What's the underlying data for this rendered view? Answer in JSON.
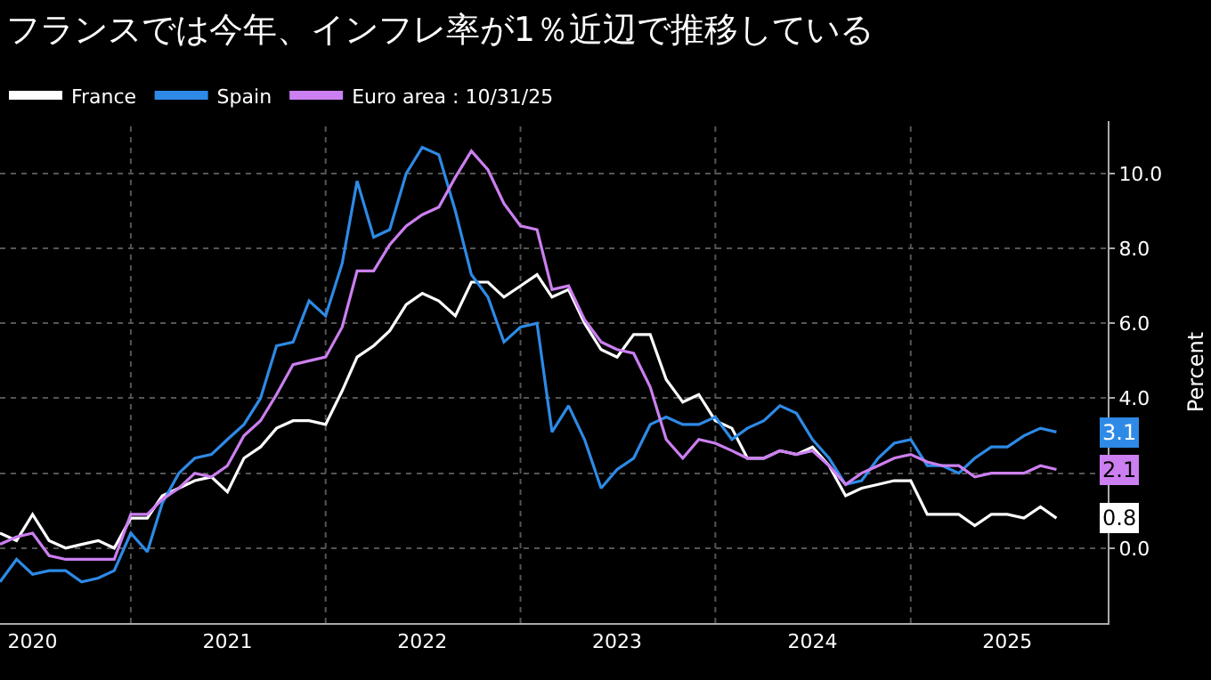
{
  "chart_data": {
    "type": "line",
    "title": "フランスでは今年、インフレ率が1％近辺で推移している",
    "ylabel": "Percent",
    "x": [
      "2020-05",
      "2020-06",
      "2020-07",
      "2020-08",
      "2020-09",
      "2020-10",
      "2020-11",
      "2020-12",
      "2021-01",
      "2021-02",
      "2021-03",
      "2021-04",
      "2021-05",
      "2021-06",
      "2021-07",
      "2021-08",
      "2021-09",
      "2021-10",
      "2021-11",
      "2021-12",
      "2022-01",
      "2022-02",
      "2022-03",
      "2022-04",
      "2022-05",
      "2022-06",
      "2022-07",
      "2022-08",
      "2022-09",
      "2022-10",
      "2022-11",
      "2022-12",
      "2023-01",
      "2023-02",
      "2023-03",
      "2023-04",
      "2023-05",
      "2023-06",
      "2023-07",
      "2023-08",
      "2023-09",
      "2023-10",
      "2023-11",
      "2023-12",
      "2024-01",
      "2024-02",
      "2024-03",
      "2024-04",
      "2024-05",
      "2024-06",
      "2024-07",
      "2024-08",
      "2024-09",
      "2024-10",
      "2024-11",
      "2024-12",
      "2025-01",
      "2025-02",
      "2025-03",
      "2025-04",
      "2025-05",
      "2025-06",
      "2025-07",
      "2025-08",
      "2025-09",
      "2025-10"
    ],
    "series": [
      {
        "name": "France",
        "color": "#ffffff",
        "values": [
          0.4,
          0.2,
          0.9,
          0.2,
          0.0,
          0.1,
          0.2,
          0.0,
          0.8,
          0.8,
          1.4,
          1.6,
          1.8,
          1.9,
          1.5,
          2.4,
          2.7,
          3.2,
          3.4,
          3.4,
          3.3,
          4.2,
          5.1,
          5.4,
          5.8,
          6.5,
          6.8,
          6.6,
          6.2,
          7.1,
          7.1,
          6.7,
          7.0,
          7.3,
          6.7,
          6.9,
          6.0,
          5.3,
          5.1,
          5.7,
          5.7,
          4.5,
          3.9,
          4.1,
          3.4,
          3.2,
          2.4,
          2.4,
          2.6,
          2.5,
          2.7,
          2.2,
          1.4,
          1.6,
          1.7,
          1.8,
          1.8,
          0.9,
          0.9,
          0.9,
          0.6,
          0.9,
          0.9,
          0.8,
          1.1,
          0.8
        ]
      },
      {
        "name": "Spain",
        "color": "#2e8ae6",
        "values": [
          -0.9,
          -0.3,
          -0.7,
          -0.6,
          -0.6,
          -0.9,
          -0.8,
          -0.6,
          0.4,
          -0.1,
          1.2,
          2.0,
          2.4,
          2.5,
          2.9,
          3.3,
          4.0,
          5.4,
          5.5,
          6.6,
          6.2,
          7.6,
          9.8,
          8.3,
          8.5,
          10.0,
          10.7,
          10.5,
          9.0,
          7.3,
          6.7,
          5.5,
          5.9,
          6.0,
          3.1,
          3.8,
          2.9,
          1.6,
          2.1,
          2.4,
          3.3,
          3.5,
          3.3,
          3.3,
          3.5,
          2.9,
          3.2,
          3.4,
          3.8,
          3.6,
          2.9,
          2.4,
          1.7,
          1.8,
          2.4,
          2.8,
          2.9,
          2.2,
          2.2,
          2.0,
          2.4,
          2.7,
          2.7,
          3.0,
          3.2,
          3.1
        ]
      },
      {
        "name": "Euro area : 10/31/25",
        "color": "#cc7ff0",
        "values": [
          0.1,
          0.3,
          0.4,
          -0.2,
          -0.3,
          -0.3,
          -0.3,
          -0.3,
          0.9,
          0.9,
          1.3,
          1.6,
          2.0,
          1.9,
          2.2,
          3.0,
          3.4,
          4.1,
          4.9,
          5.0,
          5.1,
          5.9,
          7.4,
          7.4,
          8.1,
          8.6,
          8.9,
          9.1,
          9.9,
          10.6,
          10.1,
          9.2,
          8.6,
          8.5,
          6.9,
          7.0,
          6.1,
          5.5,
          5.3,
          5.2,
          4.3,
          2.9,
          2.4,
          2.9,
          2.8,
          2.6,
          2.4,
          2.4,
          2.6,
          2.5,
          2.6,
          2.2,
          1.7,
          2.0,
          2.2,
          2.4,
          2.5,
          2.3,
          2.2,
          2.2,
          1.9,
          2.0,
          2.0,
          2.0,
          2.2,
          2.1
        ]
      }
    ],
    "xlim": [
      "2020-05-01",
      "2026-01-05"
    ],
    "xticks": [
      {
        "value": "2020-07-01",
        "label": "2020"
      },
      {
        "value": "2021-01-01",
        "label": null
      },
      {
        "value": "2021-07-01",
        "label": "2021"
      },
      {
        "value": "2022-01-01",
        "label": null
      },
      {
        "value": "2022-07-01",
        "label": "2022"
      },
      {
        "value": "2023-01-01",
        "label": null
      },
      {
        "value": "2023-07-01",
        "label": "2023"
      },
      {
        "value": "2024-01-01",
        "label": null
      },
      {
        "value": "2024-07-01",
        "label": "2024"
      },
      {
        "value": "2025-01-01",
        "label": null
      },
      {
        "value": "2025-07-01",
        "label": "2025"
      }
    ],
    "ylim": [
      -2.0,
      11.4
    ],
    "yticks": [
      {
        "value": 0,
        "label": "0.0"
      },
      {
        "value": 2,
        "label": null
      },
      {
        "value": 4,
        "label": "4.0"
      },
      {
        "value": 6,
        "label": "6.0"
      },
      {
        "value": 8,
        "label": "8.0"
      },
      {
        "value": 10,
        "label": "10.0"
      }
    ],
    "annotations": [
      {
        "text": "3.1",
        "x": "2025-10",
        "y": 3.1
      },
      {
        "text": "2.1",
        "x": "2025-10",
        "y": 2.1
      },
      {
        "text": "0.8",
        "x": "2025-10",
        "y": 0.8
      }
    ],
    "grid": true,
    "legend": "top left",
    "marker": "none",
    "line_style": "solid"
  }
}
